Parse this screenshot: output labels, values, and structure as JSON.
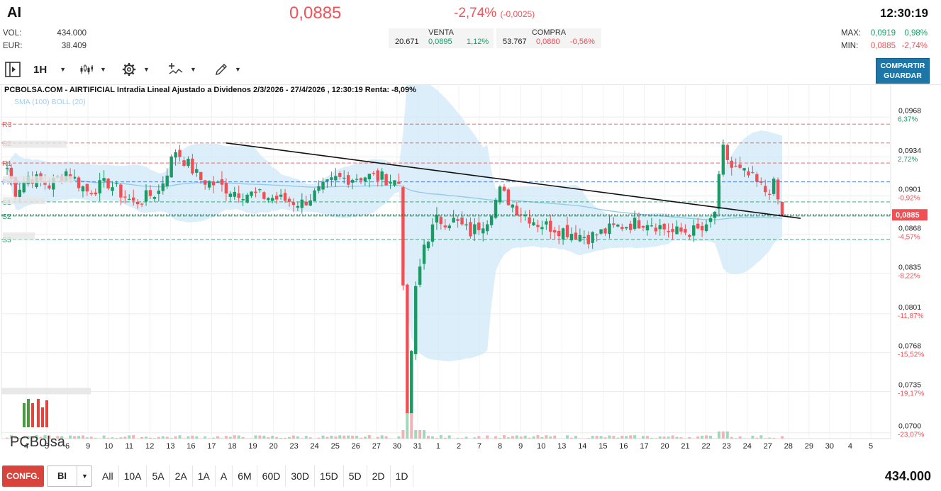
{
  "header": {
    "ticker": "AI",
    "price": "0,0885",
    "change_pct": "-2,74%",
    "change_abs": "(-0,0025)",
    "time": "12:30:19",
    "vol_label": "VOL:",
    "vol_value": "434.000",
    "eur_label": "EUR:",
    "eur_value": "38.409",
    "max_label": "MAX:",
    "max_value": "0,0919",
    "max_pct": "0,98%",
    "min_label": "MIN:",
    "min_value": "0,0885",
    "min_pct": "-2,74%",
    "venta_label": "VENTA",
    "venta_qty": "20.671",
    "venta_price": "0,0895",
    "venta_pct": "1,12%",
    "compra_label": "COMPRA",
    "compra_qty": "53.767",
    "compra_price": "0,0880",
    "compra_pct": "-0,56%"
  },
  "toolbar": {
    "interval": "1H",
    "share_label": "COMPARTIR",
    "save_label": "GUARDAR",
    "icons": [
      "play-panel-icon",
      "candles-icon",
      "gear-icon",
      "indicators-icon",
      "draw-pencil-icon"
    ]
  },
  "bottom": {
    "config_label": "CONFG.",
    "mode_label": "BI",
    "periods": [
      "All",
      "10A",
      "5A",
      "2A",
      "1A",
      "A",
      "6M",
      "60D",
      "30D",
      "15D",
      "5D",
      "2D",
      "1D"
    ],
    "volume": "434.000"
  },
  "colors": {
    "up": "#1a9a65",
    "down": "#ef4f55",
    "accent": "#1d76a8",
    "band": "#cfe8f7"
  },
  "chart_data": {
    "type": "candlestick",
    "title": "PCBOLSA.COM - AIRTIFICIAL Intradia Lineal Ajustado a Dividenos 2/3/2026 - 27/4/2026 , 12:30:19 Renta: -8,09%",
    "indicators_label": "SMA (100) BOLL (20)",
    "logo_text": "PCBolsa",
    "x_tick_labels": [
      "4",
      "5",
      "6",
      "9",
      "10",
      "11",
      "12",
      "13",
      "16",
      "17",
      "18",
      "19",
      "20",
      "23",
      "24",
      "25",
      "26",
      "27",
      "30",
      "31",
      "1",
      "2",
      "7",
      "8",
      "9",
      "10",
      "13",
      "14",
      "15",
      "16",
      "17",
      "20",
      "21",
      "22",
      "23",
      "24",
      "27",
      "28",
      "29",
      "30",
      "4",
      "5"
    ],
    "y_ticks": [
      {
        "value": "0,0968",
        "pct": "6,37%",
        "dir": "up"
      },
      {
        "value": "0,0934",
        "pct": "2,72%",
        "dir": "up"
      },
      {
        "value": "0,0901",
        "pct": "-0,92%",
        "dir": "down"
      },
      {
        "value": "0,0868",
        "pct": "-4,57%",
        "dir": "down"
      },
      {
        "value": "0,0835",
        "pct": "-8,22%",
        "dir": "down"
      },
      {
        "value": "0,0801",
        "pct": "-11,87%",
        "dir": "down"
      },
      {
        "value": "0,0768",
        "pct": "-15,52%",
        "dir": "down"
      },
      {
        "value": "0,0735",
        "pct": "-19,17%",
        "dir": "down"
      },
      {
        "value": "0,0700",
        "pct": "-23,07%",
        "dir": "down"
      }
    ],
    "ylim": [
      0.0695,
      0.0985
    ],
    "current_price_label": "0,0885",
    "current_price": 0.0885,
    "pivot_levels": [
      {
        "name": "R3",
        "value": 0.0962,
        "kind": "r"
      },
      {
        "name": "R2",
        "value": 0.0946,
        "kind": "r"
      },
      {
        "name": "R1",
        "value": 0.0929,
        "kind": "r"
      },
      {
        "name": "Pivot",
        "value": 0.0913,
        "kind": "p"
      },
      {
        "name": "S1",
        "value": 0.0896,
        "kind": "s"
      },
      {
        "name": "S2",
        "value": 0.0884,
        "kind": "s"
      },
      {
        "name": "S3",
        "value": 0.0864,
        "kind": "s"
      }
    ],
    "series_close_anchors": [
      [
        0,
        0.0925
      ],
      [
        2,
        0.0905
      ],
      [
        5,
        0.0918
      ],
      [
        10,
        0.091
      ],
      [
        14,
        0.0922
      ],
      [
        19,
        0.0905
      ],
      [
        24,
        0.0912
      ],
      [
        30,
        0.0895
      ],
      [
        36,
        0.0905
      ],
      [
        40,
        0.094
      ],
      [
        46,
        0.0915
      ],
      [
        54,
        0.0905
      ],
      [
        62,
        0.09
      ],
      [
        70,
        0.0895
      ],
      [
        78,
        0.0915
      ],
      [
        85,
        0.0918
      ],
      [
        90,
        0.0916
      ],
      [
        93,
        0.0912
      ],
      [
        94,
        0.083
      ],
      [
        95,
        0.071
      ],
      [
        96,
        0.077
      ],
      [
        97,
        0.082
      ],
      [
        99,
        0.086
      ],
      [
        102,
        0.088
      ],
      [
        106,
        0.088
      ],
      [
        110,
        0.087
      ],
      [
        114,
        0.0882
      ],
      [
        117,
        0.0905
      ],
      [
        121,
        0.089
      ],
      [
        126,
        0.0878
      ],
      [
        132,
        0.0872
      ],
      [
        138,
        0.0866
      ],
      [
        145,
        0.0875
      ],
      [
        152,
        0.088
      ],
      [
        158,
        0.087
      ],
      [
        166,
        0.0872
      ],
      [
        168,
        0.0888
      ],
      [
        170,
        0.094
      ],
      [
        172,
        0.0925
      ],
      [
        176,
        0.0918
      ],
      [
        180,
        0.0905
      ],
      [
        182,
        0.091
      ],
      [
        184,
        0.0885
      ]
    ]
  }
}
